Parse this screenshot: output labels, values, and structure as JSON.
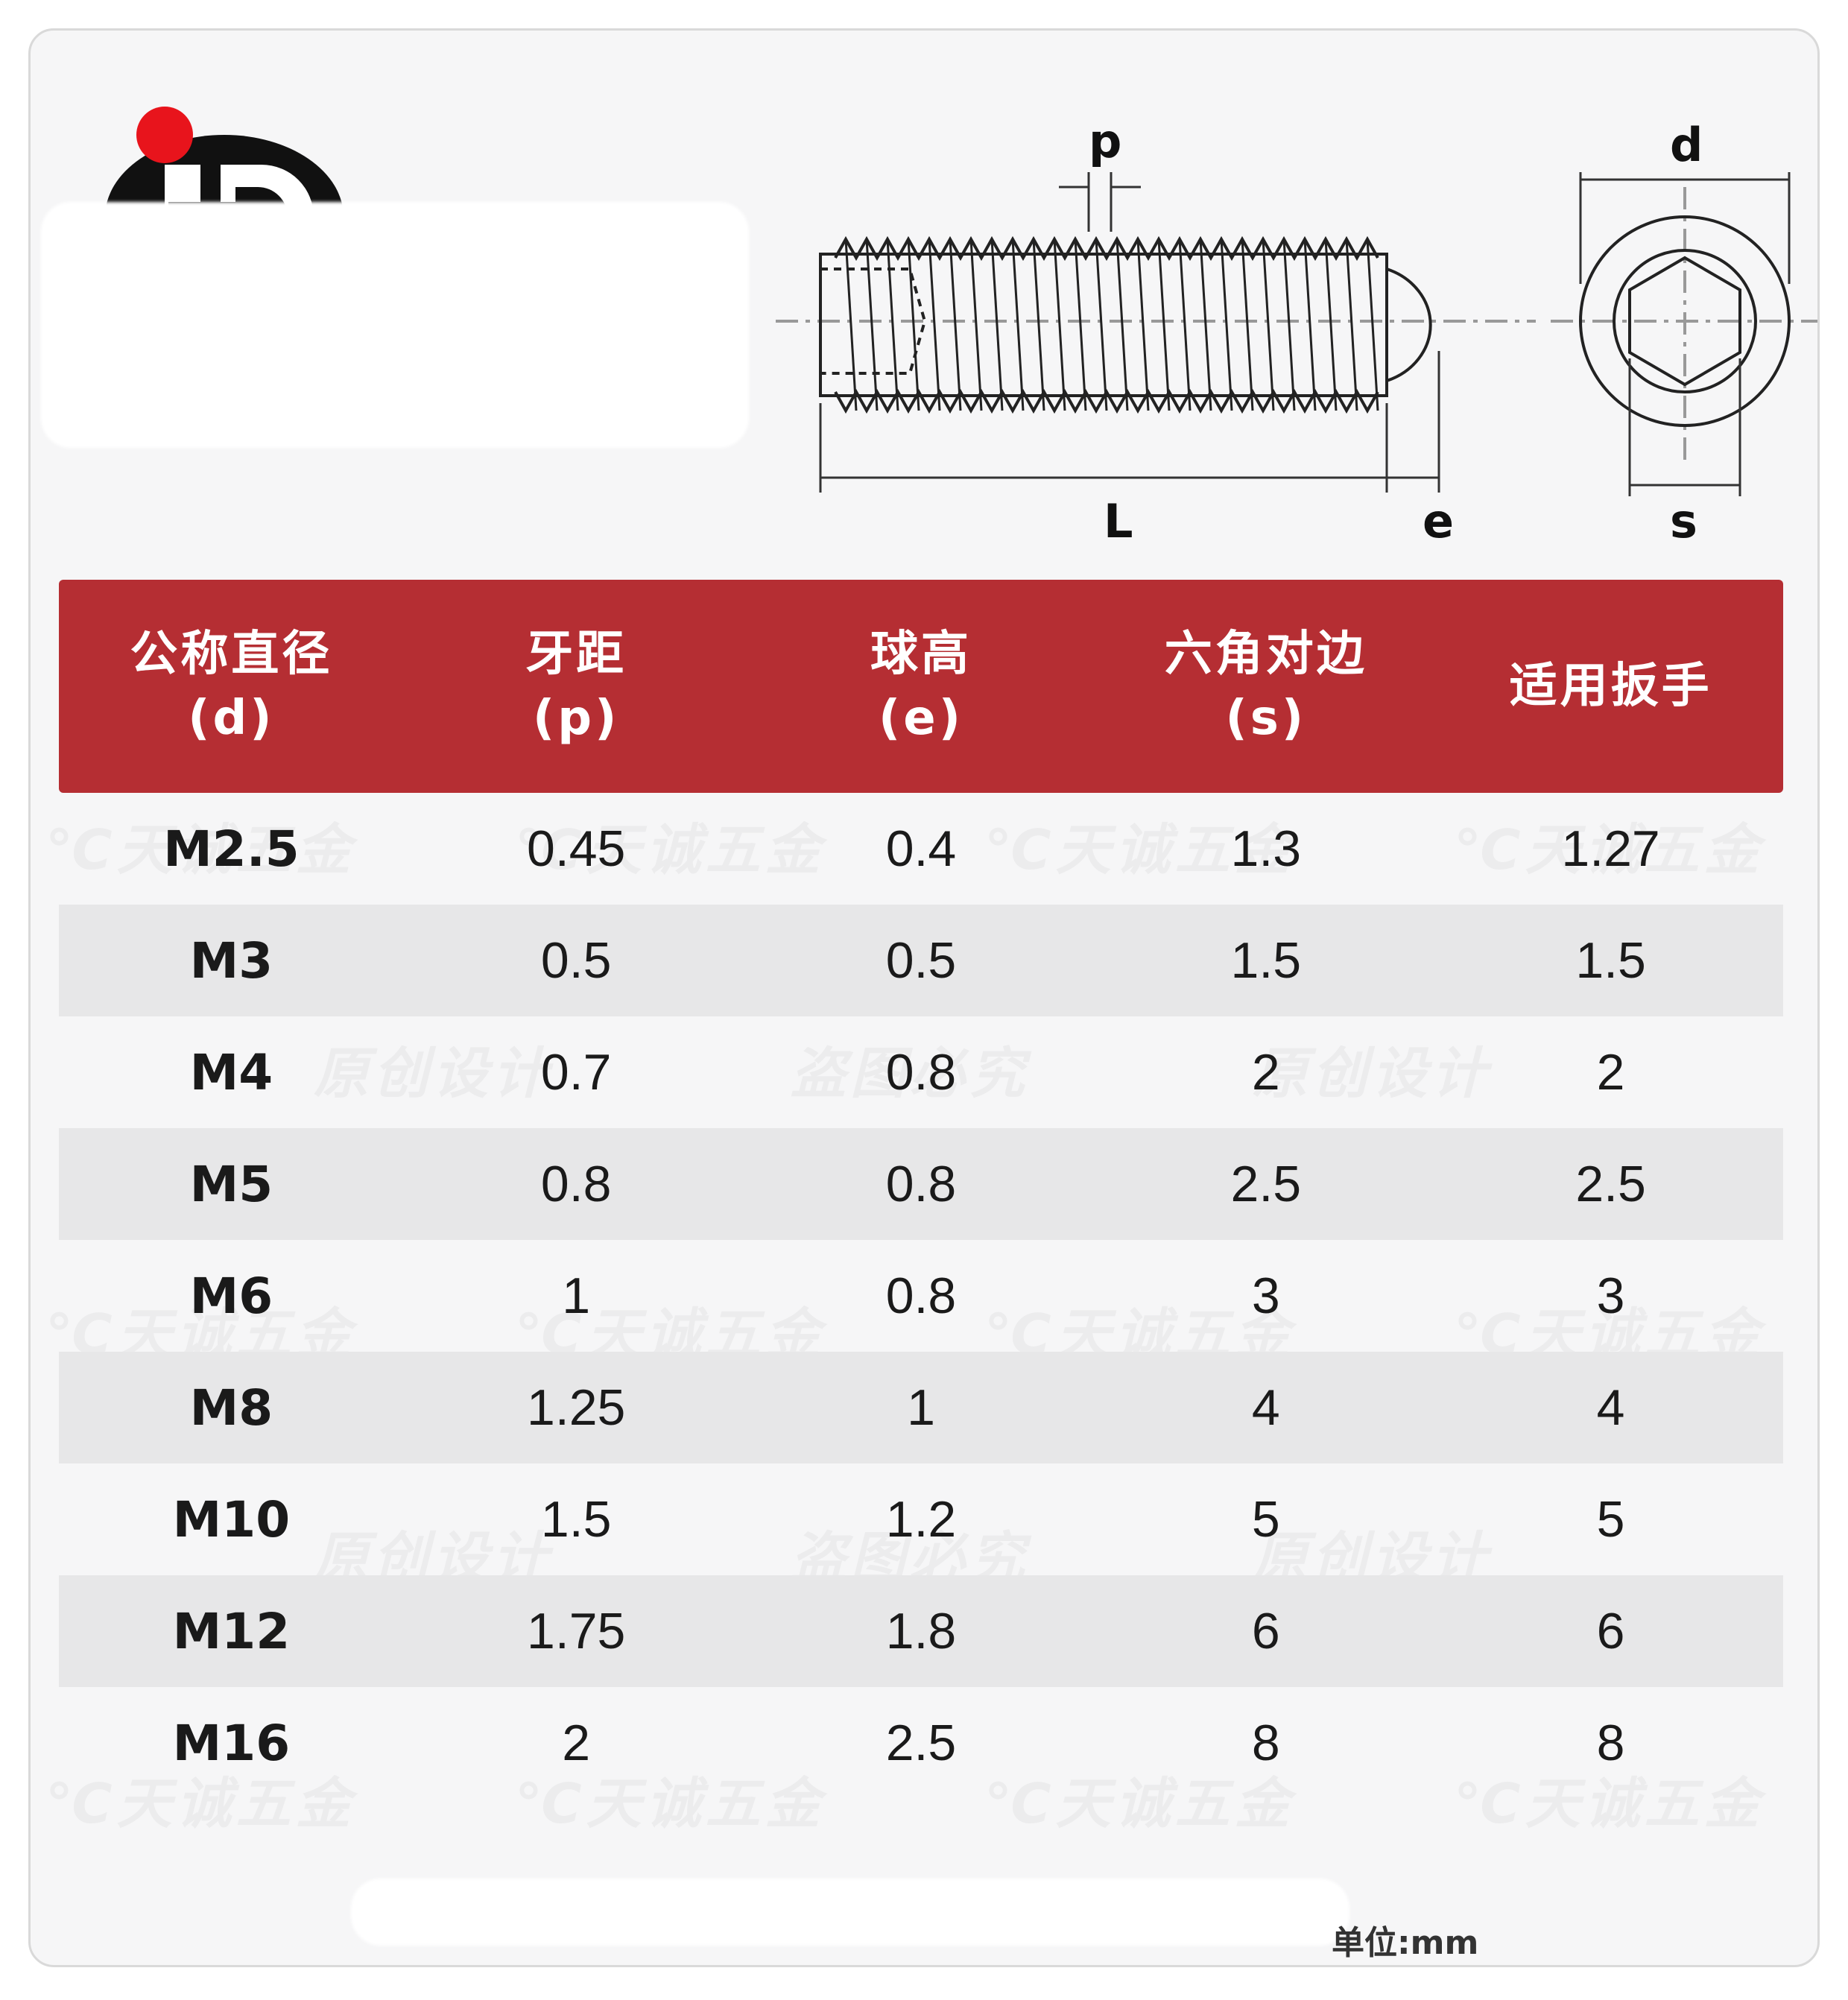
{
  "colors": {
    "header_bg": "#b52e33",
    "header_text": "#ffffff",
    "row_alt_bg": "#e7e7e8",
    "card_bg": "#f6f6f7",
    "logo_black": "#111111",
    "logo_red": "#e8141c"
  },
  "drawing": {
    "label_p": "p",
    "label_d": "d",
    "label_L": "L",
    "label_e": "e",
    "label_s": "s"
  },
  "table": {
    "headers": [
      {
        "line1": "公称直径",
        "line2": "(d)"
      },
      {
        "line1": "牙距",
        "line2": "(p)"
      },
      {
        "line1": "球高",
        "line2": "(e)"
      },
      {
        "line1": "六角对边",
        "line2": "(s)"
      },
      {
        "line1": "适用扳手",
        "line2": ""
      }
    ],
    "rows": [
      [
        "M2.5",
        "0.45",
        "0.4",
        "1.3",
        "1.27"
      ],
      [
        "M3",
        "0.5",
        "0.5",
        "1.5",
        "1.5"
      ],
      [
        "M4",
        "0.7",
        "0.8",
        "2",
        "2"
      ],
      [
        "M5",
        "0.8",
        "0.8",
        "2.5",
        "2.5"
      ],
      [
        "M6",
        "1",
        "0.8",
        "3",
        "3"
      ],
      [
        "M8",
        "1.25",
        "1",
        "4",
        "4"
      ],
      [
        "M10",
        "1.5",
        "1.2",
        "5",
        "5"
      ],
      [
        "M12",
        "1.75",
        "1.8",
        "6",
        "6"
      ],
      [
        "M16",
        "2",
        "2.5",
        "8",
        "8"
      ]
    ]
  },
  "footer": {
    "unit": "单位:mm"
  }
}
